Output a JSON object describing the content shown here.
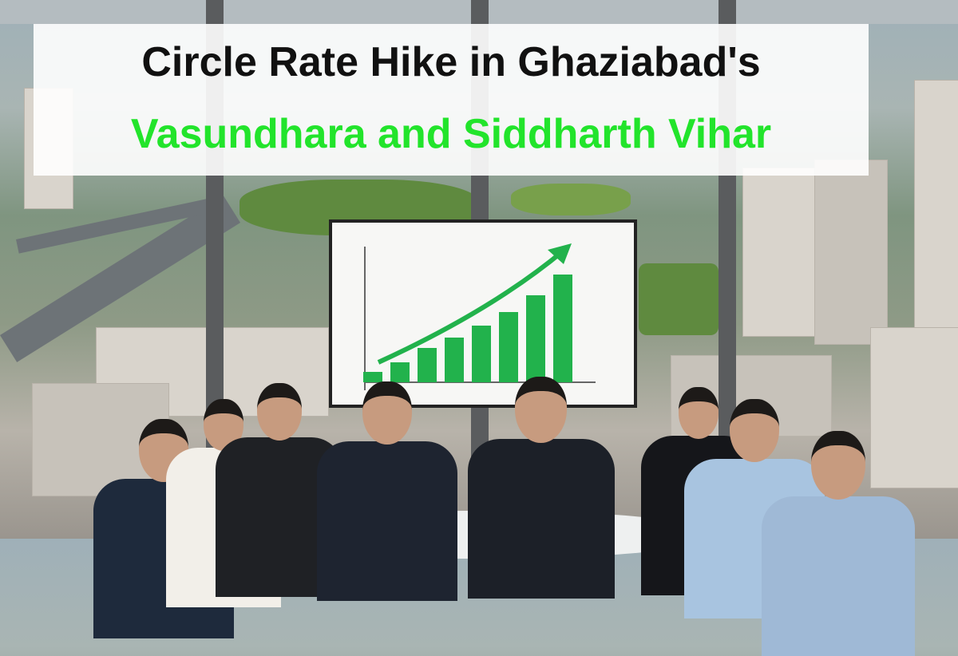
{
  "title": {
    "line1": "Circle Rate Hike in Ghaziabad's",
    "line2": "Vasundhara and Siddharth Vihar",
    "line1_color": "#111111",
    "line2_color": "#22e42b"
  },
  "screen_chart": {
    "type": "bar",
    "trend": "rising",
    "bar_color": "#22b24c",
    "bar_levels": [
      13,
      25,
      43,
      56,
      71,
      88,
      109,
      135
    ]
  }
}
